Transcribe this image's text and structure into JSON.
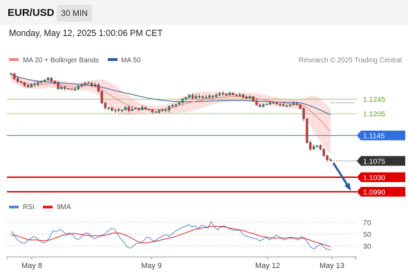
{
  "header": {
    "symbol": "EUR/USD",
    "timeframe": "30 MIN",
    "datetime": "Monday, May 12, 2025 1:00:06 PM CET"
  },
  "legend": {
    "ma20_label": "MA 20 + Bollinger Bands",
    "ma50_label": "MA 50",
    "rsi_label": "RSI",
    "rsi_ma_label": "9MA",
    "copyright": "Research © 2025 Trading Central"
  },
  "colors": {
    "up": "#27a06a",
    "down": "#d93636",
    "ma20": "#ef7f7f",
    "bollinger_fill": "#fbdcdc",
    "ma50": "#2f5a9c",
    "support": "#e00000",
    "pivot": "#2f6fe0",
    "resistance": "#8bc34a",
    "current": "#333333",
    "rsi": "#5b82d6",
    "rsi_ma": "#e02020",
    "arrow": "#2c5aa0"
  },
  "chart_data": [
    {
      "type": "candlestick",
      "title": "EUR/USD",
      "timeframe": "30 MIN",
      "x_tick_labels": [
        "May 8",
        "May 9",
        "May 12",
        "May 13"
      ],
      "ylim": [
        1.0965,
        1.1335
      ],
      "levels": [
        {
          "value": 1.1245,
          "label": "1.1245",
          "kind": "resistance"
        },
        {
          "value": 1.1205,
          "label": "1.1205",
          "kind": "resistance"
        },
        {
          "value": 1.1145,
          "label": "1.1145",
          "kind": "pivot"
        },
        {
          "value": 1.1075,
          "label": "1.1075",
          "kind": "current"
        },
        {
          "value": 1.103,
          "label": "1.1030",
          "kind": "support"
        },
        {
          "value": 1.099,
          "label": "1.0990",
          "kind": "support"
        }
      ],
      "close_path": [
        1.1315,
        1.13,
        1.1294,
        1.1278,
        1.1283,
        1.1292,
        1.1297,
        1.1296,
        1.1299,
        1.1288,
        1.1276,
        1.1274,
        1.1272,
        1.1273,
        1.1276,
        1.1287,
        1.1293,
        1.1286,
        1.1277,
        1.124,
        1.1218,
        1.122,
        1.1216,
        1.1214,
        1.1219,
        1.1216,
        1.1216,
        1.1221,
        1.1218,
        1.1216,
        1.1211,
        1.1214,
        1.1218,
        1.1222,
        1.1226,
        1.1237,
        1.1248,
        1.1251,
        1.1252,
        1.1253,
        1.1251,
        1.1247,
        1.1251,
        1.1256,
        1.1259,
        1.1261,
        1.1256,
        1.1254,
        1.1253,
        1.1251,
        1.1249,
        1.1233,
        1.1228,
        1.1233,
        1.1234,
        1.1231,
        1.1235,
        1.1232,
        1.1229,
        1.123,
        1.1225,
        1.1222,
        1.1129,
        1.1105,
        1.112,
        1.11,
        1.1085,
        1.1075
      ],
      "ma20_path": [
        1.1305,
        1.1298,
        1.1292,
        1.1288,
        1.1286,
        1.1285,
        1.1285,
        1.1286,
        1.1288,
        1.1288,
        1.1285,
        1.1283,
        1.1281,
        1.1279,
        1.1279,
        1.1281,
        1.1282,
        1.1281,
        1.1279,
        1.1272,
        1.1263,
        1.1254,
        1.1246,
        1.1238,
        1.1232,
        1.1226,
        1.1222,
        1.1219,
        1.1218,
        1.1217,
        1.1216,
        1.1216,
        1.1217,
        1.1219,
        1.1222,
        1.1226,
        1.123,
        1.1234,
        1.1237,
        1.124,
        1.1243,
        1.1245,
        1.1247,
        1.1249,
        1.125,
        1.1251,
        1.1252,
        1.1252,
        1.1252,
        1.1252,
        1.1251,
        1.1249,
        1.1246,
        1.1244,
        1.1241,
        1.1239,
        1.1237,
        1.1235,
        1.1233,
        1.1232,
        1.1231,
        1.123,
        1.1222,
        1.121,
        1.1198,
        1.1185,
        1.117,
        1.1155
      ],
      "ma50_path": [
        1.1312,
        1.1308,
        1.1304,
        1.1301,
        1.1298,
        1.1296,
        1.1294,
        1.1293,
        1.1292,
        1.1291,
        1.129,
        1.1289,
        1.1288,
        1.1287,
        1.1286,
        1.1285,
        1.1284,
        1.1283,
        1.1281,
        1.1278,
        1.1275,
        1.1271,
        1.1268,
        1.1265,
        1.1262,
        1.1259,
        1.1256,
        1.1253,
        1.125,
        1.1247,
        1.1245,
        1.1243,
        1.1241,
        1.124,
        1.1239,
        1.1238,
        1.1238,
        1.1238,
        1.1238,
        1.1238,
        1.1239,
        1.1239,
        1.124,
        1.124,
        1.1241,
        1.1241,
        1.1241,
        1.1241,
        1.1241,
        1.1241,
        1.124,
        1.124,
        1.1239,
        1.1239,
        1.1238,
        1.1238,
        1.1237,
        1.1237,
        1.1236,
        1.1236,
        1.1235,
        1.1234,
        1.123,
        1.1225,
        1.122,
        1.1214,
        1.1208,
        1.1202
      ],
      "bollinger_halfwidth": [
        0.0012,
        0.0012,
        0.0013,
        0.0013,
        0.0012,
        0.0012,
        0.0011,
        0.0011,
        0.0011,
        0.0011,
        0.0012,
        0.0012,
        0.0012,
        0.0012,
        0.0012,
        0.0012,
        0.0013,
        0.0015,
        0.002,
        0.0028,
        0.0034,
        0.0036,
        0.0036,
        0.0034,
        0.003,
        0.0025,
        0.002,
        0.0016,
        0.0012,
        0.001,
        0.001,
        0.001,
        0.0011,
        0.0013,
        0.0016,
        0.0019,
        0.0022,
        0.0024,
        0.0025,
        0.0024,
        0.0022,
        0.002,
        0.0018,
        0.0016,
        0.0014,
        0.0013,
        0.0012,
        0.0012,
        0.0012,
        0.0012,
        0.0012,
        0.0013,
        0.0014,
        0.0014,
        0.0014,
        0.0013,
        0.0013,
        0.0012,
        0.0012,
        0.0012,
        0.0013,
        0.0014,
        0.003,
        0.0045,
        0.0055,
        0.006,
        0.0062,
        0.0062
      ],
      "forecast_arrow": {
        "from": 1.1075,
        "to": 1.099
      }
    },
    {
      "type": "line",
      "title": "RSI",
      "yticks": [
        30,
        50,
        70
      ],
      "series": [
        {
          "name": "RSI",
          "values": [
            55,
            48,
            40,
            36,
            34,
            38,
            42,
            46,
            43,
            38,
            35,
            37,
            45,
            56,
            54,
            58,
            55,
            50,
            52,
            49,
            42,
            41,
            46,
            52,
            51,
            44,
            42,
            45,
            48,
            50,
            55,
            60,
            59,
            50,
            42,
            36,
            28,
            26,
            30,
            35,
            34,
            38,
            45,
            43,
            38,
            40,
            44,
            47,
            49,
            46,
            51,
            55,
            58,
            61,
            63,
            66,
            62,
            64,
            59,
            65,
            63,
            60,
            71,
            62,
            57,
            63,
            64,
            61,
            58,
            56,
            57,
            56,
            49,
            46,
            45,
            43,
            42,
            38,
            41,
            44,
            40,
            43,
            48,
            46,
            42,
            40,
            44,
            45,
            42,
            40,
            46,
            43,
            35,
            27,
            25,
            30,
            33,
            27,
            24,
            23
          ]
        },
        {
          "name": "9MA",
          "values": [
            48,
            48,
            47,
            45,
            43,
            41,
            40,
            40,
            40,
            39,
            39,
            39,
            40,
            42,
            44,
            46,
            48,
            49,
            50,
            51,
            51,
            50,
            49,
            48,
            48,
            47,
            47,
            47,
            47,
            48,
            49,
            51,
            52,
            52,
            51,
            49,
            47,
            44,
            41,
            38,
            36,
            35,
            35,
            36,
            37,
            38,
            39,
            41,
            42,
            43,
            44,
            46,
            48,
            50,
            52,
            54,
            56,
            58,
            59,
            60,
            61,
            62,
            63,
            63,
            63,
            62,
            62,
            61,
            60,
            59,
            58,
            57,
            56,
            54,
            52,
            51,
            49,
            47,
            46,
            45,
            44,
            43,
            43,
            43,
            43,
            43,
            43,
            43,
            43,
            43,
            43,
            42,
            41,
            39,
            37,
            35,
            34,
            32,
            30,
            29
          ]
        }
      ]
    }
  ]
}
